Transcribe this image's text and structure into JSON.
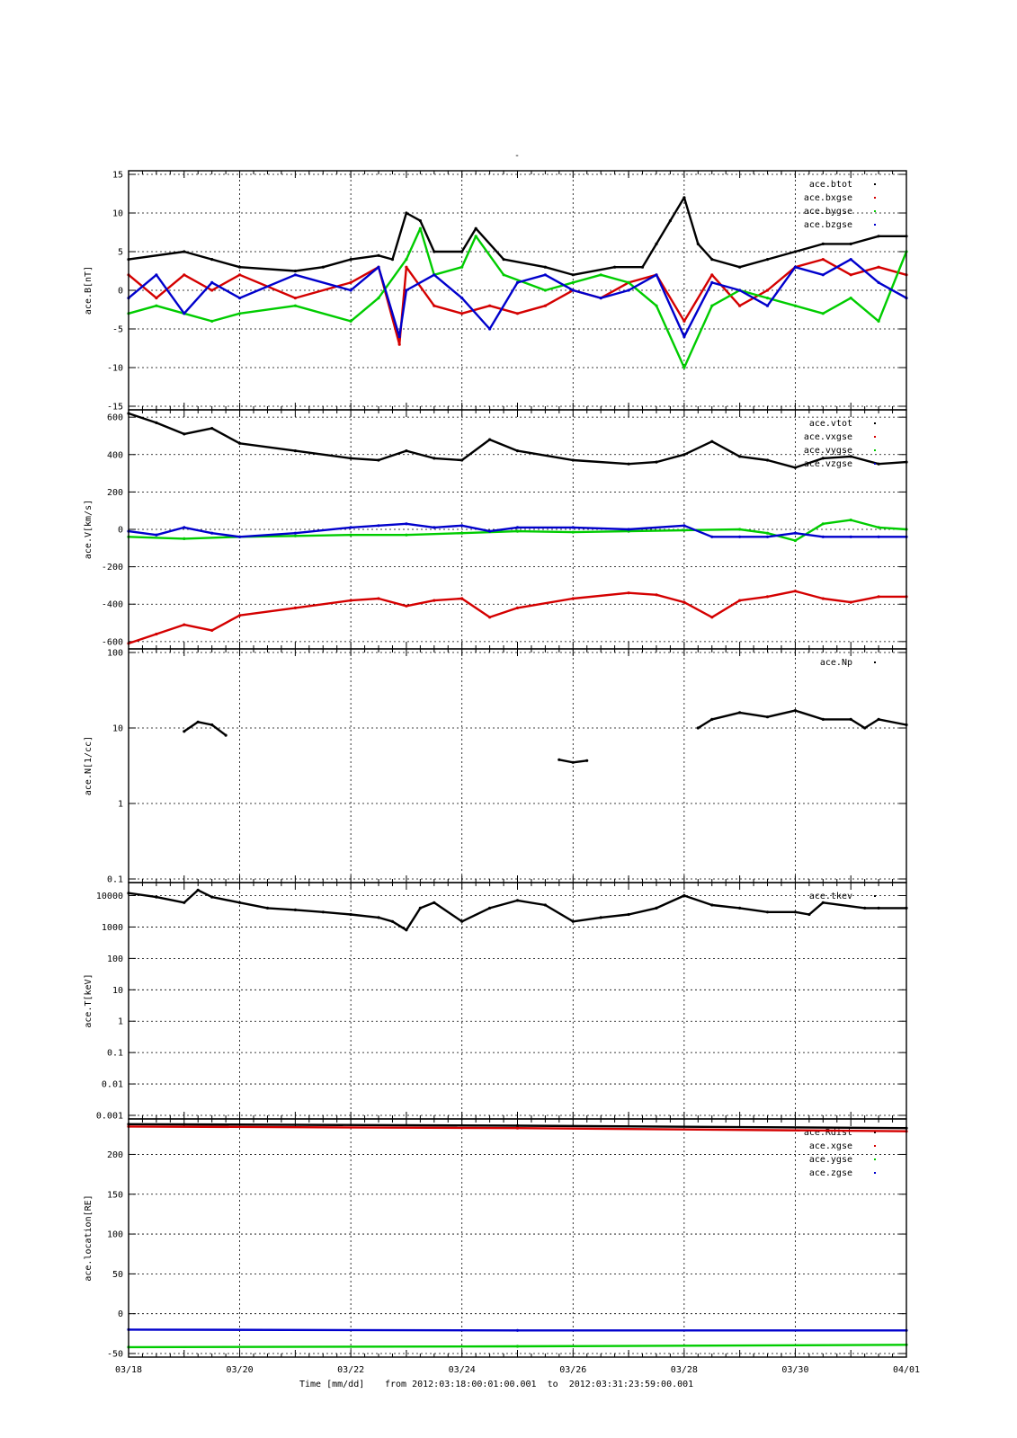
{
  "figure": {
    "title": "-",
    "footer": {
      "xlabel": "Time [mm/dd]",
      "range_text": "from 2012:03:18:00:01:00.001  to  2012:03:31:23:59:00.001"
    },
    "x_ticks": [
      "03/18",
      "03/20",
      "03/22",
      "03/24",
      "03/26",
      "03/28",
      "03/30",
      "04/01"
    ],
    "x_range_days": [
      0,
      14
    ]
  },
  "colors": {
    "black": "#000000",
    "red": "#d40000",
    "green": "#00cc00",
    "blue": "#0000cc"
  },
  "chart_data": [
    {
      "type": "line",
      "ylabel": "ace.B[nT]",
      "ylim": [
        -15,
        15
      ],
      "yscale": "linear",
      "yticks": [
        -15,
        -10,
        -5,
        0,
        5,
        10,
        15
      ],
      "ytick_labels": [
        "-15",
        "-10",
        "-5",
        "0",
        "5",
        "10",
        "15"
      ],
      "grid": true,
      "legend_position": "top-right",
      "series": [
        {
          "name": "ace.btot",
          "color": "black",
          "x": [
            "03/18 00:00",
            "03/19 00:00",
            "03/19 12:00",
            "03/20 00:00",
            "03/21 00:00",
            "03/21 12:00",
            "03/22 00:00",
            "03/22 12:00",
            "03/22 18:00",
            "03/23 00:00",
            "03/23 06:00",
            "03/23 12:00",
            "03/24 00:00",
            "03/24 06:00",
            "03/24 18:00",
            "03/25 12:00",
            "03/26 00:00",
            "03/26 18:00",
            "03/27 06:00",
            "03/27 12:00",
            "03/27 18:00",
            "03/28 00:00",
            "03/28 06:00",
            "03/28 12:00",
            "03/29 00:00",
            "03/29 12:00",
            "03/30 00:00",
            "03/30 12:00",
            "03/31 00:00",
            "03/31 12:00",
            "04/01 00:00"
          ],
          "y": [
            4,
            5,
            4,
            3,
            2.5,
            3,
            4,
            4.5,
            4,
            10,
            9,
            5,
            5,
            8,
            4,
            3,
            2,
            3,
            3,
            6,
            9,
            12,
            6,
            4,
            3,
            4,
            5,
            6,
            6,
            7,
            7
          ]
        },
        {
          "name": "ace.bxgse",
          "color": "red",
          "x": [
            "03/18 00:00",
            "03/18 12:00",
            "03/19 00:00",
            "03/19 12:00",
            "03/20 00:00",
            "03/21 00:00",
            "03/22 00:00",
            "03/22 12:00",
            "03/22 21:00",
            "03/23 00:00",
            "03/23 12:00",
            "03/24 00:00",
            "03/24 12:00",
            "03/25 00:00",
            "03/25 12:00",
            "03/26 00:00",
            "03/26 12:00",
            "03/27 00:00",
            "03/27 12:00",
            "03/28 00:00",
            "03/28 12:00",
            "03/29 00:00",
            "03/29 12:00",
            "03/30 00:00",
            "03/30 12:00",
            "03/31 00:00",
            "03/31 12:00",
            "04/01 00:00"
          ],
          "y": [
            2,
            -1,
            2,
            0,
            2,
            -1,
            1,
            3,
            -7,
            3,
            -2,
            -3,
            -2,
            -3,
            -2,
            0,
            -1,
            1,
            2,
            -4,
            2,
            -2,
            0,
            3,
            4,
            2,
            3,
            2
          ]
        },
        {
          "name": "ace.bygse",
          "color": "green",
          "x": [
            "03/18 00:00",
            "03/18 12:00",
            "03/19 00:00",
            "03/19 12:00",
            "03/20 00:00",
            "03/21 00:00",
            "03/22 00:00",
            "03/22 12:00",
            "03/23 00:00",
            "03/23 06:00",
            "03/23 12:00",
            "03/24 00:00",
            "03/24 06:00",
            "03/24 18:00",
            "03/25 12:00",
            "03/26 00:00",
            "03/26 12:00",
            "03/27 00:00",
            "03/27 12:00",
            "03/28 00:00",
            "03/28 12:00",
            "03/29 00:00",
            "03/29 12:00",
            "03/30 00:00",
            "03/30 12:00",
            "03/31 00:00",
            "03/31 12:00",
            "04/01 00:00"
          ],
          "y": [
            -3,
            -2,
            -3,
            -4,
            -3,
            -2,
            -4,
            -1,
            4,
            8,
            2,
            3,
            7,
            2,
            0,
            1,
            2,
            1,
            -2,
            -10,
            -2,
            0,
            -1,
            -2,
            -3,
            -1,
            -4,
            5
          ]
        },
        {
          "name": "ace.bzgse",
          "color": "blue",
          "x": [
            "03/18 00:00",
            "03/18 12:00",
            "03/19 00:00",
            "03/19 12:00",
            "03/20 00:00",
            "03/21 00:00",
            "03/22 00:00",
            "03/22 12:00",
            "03/22 21:00",
            "03/23 00:00",
            "03/23 12:00",
            "03/24 00:00",
            "03/24 12:00",
            "03/25 00:00",
            "03/25 12:00",
            "03/26 00:00",
            "03/26 12:00",
            "03/27 00:00",
            "03/27 12:00",
            "03/28 00:00",
            "03/28 12:00",
            "03/29 00:00",
            "03/29 12:00",
            "03/30 00:00",
            "03/30 12:00",
            "03/31 00:00",
            "03/31 12:00",
            "04/01 00:00"
          ],
          "y": [
            -1,
            2,
            -3,
            1,
            -1,
            2,
            0,
            3,
            -6,
            0,
            2,
            -1,
            -5,
            1,
            2,
            0,
            -1,
            0,
            2,
            -6,
            1,
            0,
            -2,
            3,
            2,
            4,
            1,
            -1
          ]
        }
      ]
    },
    {
      "type": "line",
      "ylabel": "ace.V[km/s]",
      "ylim": [
        -620,
        620
      ],
      "yscale": "linear",
      "yticks": [
        -600,
        -400,
        -200,
        0,
        200,
        400,
        600
      ],
      "ytick_labels": [
        "-600",
        "-400",
        "-200",
        "0",
        "200",
        "400",
        "600"
      ],
      "grid": true,
      "legend_position": "top-right",
      "series": [
        {
          "name": "ace.vtot",
          "color": "black",
          "x": [
            "03/18 00:00",
            "03/18 12:00",
            "03/19 00:00",
            "03/19 12:00",
            "03/20 00:00",
            "03/21 00:00",
            "03/22 00:00",
            "03/22 12:00",
            "03/23 00:00",
            "03/23 12:00",
            "03/24 00:00",
            "03/24 12:00",
            "03/25 00:00",
            "03/26 00:00",
            "03/27 00:00",
            "03/27 12:00",
            "03/28 00:00",
            "03/28 12:00",
            "03/29 00:00",
            "03/29 12:00",
            "03/30 00:00",
            "03/30 12:00",
            "03/31 00:00",
            "03/31 12:00",
            "04/01 00:00"
          ],
          "y": [
            620,
            570,
            510,
            540,
            460,
            420,
            380,
            370,
            420,
            380,
            370,
            480,
            420,
            370,
            350,
            360,
            400,
            470,
            390,
            370,
            330,
            380,
            390,
            350,
            360
          ]
        },
        {
          "name": "ace.vxgse",
          "color": "red",
          "x": [
            "03/18 00:00",
            "03/18 12:00",
            "03/19 00:00",
            "03/19 12:00",
            "03/20 00:00",
            "03/21 00:00",
            "03/22 00:00",
            "03/22 12:00",
            "03/23 00:00",
            "03/23 12:00",
            "03/24 00:00",
            "03/24 12:00",
            "03/25 00:00",
            "03/26 00:00",
            "03/27 00:00",
            "03/27 12:00",
            "03/28 00:00",
            "03/28 12:00",
            "03/29 00:00",
            "03/29 12:00",
            "03/30 00:00",
            "03/30 12:00",
            "03/31 00:00",
            "03/31 12:00",
            "04/01 00:00"
          ],
          "y": [
            -610,
            -560,
            -510,
            -540,
            -460,
            -420,
            -380,
            -370,
            -410,
            -380,
            -370,
            -470,
            -420,
            -370,
            -340,
            -350,
            -390,
            -470,
            -380,
            -360,
            -330,
            -370,
            -390,
            -360,
            -360
          ]
        },
        {
          "name": "ace.vygse",
          "color": "green",
          "x": [
            "03/18 00:00",
            "03/19 00:00",
            "03/20 00:00",
            "03/21 00:00",
            "03/22 00:00",
            "03/23 00:00",
            "03/24 00:00",
            "03/25 00:00",
            "03/26 00:00",
            "03/27 00:00",
            "03/28 00:00",
            "03/29 00:00",
            "03/29 12:00",
            "03/30 00:00",
            "03/30 12:00",
            "03/31 00:00",
            "03/31 12:00",
            "04/01 00:00"
          ],
          "y": [
            -40,
            -50,
            -40,
            -35,
            -30,
            -30,
            -20,
            -10,
            -15,
            -10,
            -5,
            0,
            -20,
            -60,
            30,
            50,
            10,
            0
          ]
        },
        {
          "name": "ace.vzgse",
          "color": "blue",
          "x": [
            "03/18 00:00",
            "03/18 12:00",
            "03/19 00:00",
            "03/19 12:00",
            "03/20 00:00",
            "03/21 00:00",
            "03/22 00:00",
            "03/22 12:00",
            "03/23 00:00",
            "03/23 12:00",
            "03/24 00:00",
            "03/24 12:00",
            "03/25 00:00",
            "03/26 00:00",
            "03/27 00:00",
            "03/28 00:00",
            "03/28 12:00",
            "03/29 00:00",
            "03/29 12:00",
            "03/30 00:00",
            "03/30 12:00",
            "03/31 00:00",
            "03/31 12:00",
            "04/01 00:00"
          ],
          "y": [
            -10,
            -30,
            10,
            -20,
            -40,
            -20,
            10,
            20,
            30,
            10,
            20,
            -10,
            10,
            10,
            0,
            20,
            -40,
            -40,
            -40,
            -20,
            -40,
            -40,
            -40,
            -40
          ]
        }
      ]
    },
    {
      "type": "scatter",
      "ylabel": "ace.N[1/cc]",
      "ylim": [
        0.1,
        100
      ],
      "yscale": "log",
      "yticks": [
        0.1,
        1,
        10,
        100
      ],
      "ytick_labels": [
        "0.1",
        "1",
        "10",
        "100"
      ],
      "grid": true,
      "legend_position": "top-right",
      "series": [
        {
          "name": "ace.Np",
          "color": "black",
          "segments": [
            {
              "x": [
                "03/19 00:00",
                "03/19 06:00",
                "03/19 12:00",
                "03/19 18:00"
              ],
              "y": [
                9,
                12,
                11,
                8
              ]
            },
            {
              "x": [
                "03/25 18:00",
                "03/26 00:00",
                "03/26 06:00"
              ],
              "y": [
                3.8,
                3.5,
                3.7
              ]
            },
            {
              "x": [
                "03/28 06:00",
                "03/28 12:00",
                "03/29 00:00",
                "03/29 12:00",
                "03/30 00:00",
                "03/30 12:00",
                "03/31 00:00",
                "03/31 06:00",
                "03/31 12:00",
                "04/01 00:00"
              ],
              "y": [
                10,
                13,
                16,
                14,
                17,
                13,
                13,
                10,
                13,
                11
              ]
            }
          ]
        }
      ]
    },
    {
      "type": "scatter",
      "ylabel": "ace.T[keV]",
      "ylim": [
        0.001,
        20000
      ],
      "yscale": "log",
      "yticks": [
        0.001,
        0.01,
        0.1,
        1,
        10,
        100,
        1000,
        10000
      ],
      "ytick_labels": [
        "0.001",
        "0.01",
        "0.1",
        "1",
        "10",
        "100",
        "1000",
        "10000"
      ],
      "grid": true,
      "legend_position": "top-right",
      "series": [
        {
          "name": "ace.tkev",
          "color": "black",
          "segments": [
            {
              "x": [
                "03/18 00:00",
                "03/18 12:00",
                "03/19 00:00",
                "03/19 06:00",
                "03/19 12:00",
                "03/20 00:00",
                "03/20 12:00",
                "03/21 00:00",
                "03/21 12:00",
                "03/22 00:00",
                "03/22 12:00",
                "03/22 18:00",
                "03/23 00:00",
                "03/23 06:00",
                "03/23 12:00",
                "03/24 00:00",
                "03/24 12:00",
                "03/25 00:00",
                "03/25 12:00",
                "03/26 00:00",
                "03/26 12:00",
                "03/27 00:00",
                "03/27 12:00",
                "03/28 00:00",
                "03/28 12:00",
                "03/29 00:00",
                "03/29 12:00",
                "03/30 00:00",
                "03/30 06:00",
                "03/30 12:00",
                "03/31 06:00",
                "03/31 12:00",
                "04/01 00:00"
              ],
              "y": [
                12000,
                9000,
                6000,
                15000,
                9000,
                6000,
                4000,
                3500,
                3000,
                2500,
                2000,
                1500,
                800,
                4000,
                6000,
                1500,
                4000,
                7000,
                5000,
                1500,
                2000,
                2500,
                4000,
                10000,
                5000,
                4000,
                3000,
                3000,
                2500,
                6000,
                4000,
                4000,
                4000
              ]
            }
          ]
        }
      ]
    },
    {
      "type": "line",
      "ylabel": "ace.location[RE]",
      "ylim": [
        -50,
        240
      ],
      "yscale": "linear",
      "yticks": [
        -50,
        0,
        50,
        100,
        150,
        200
      ],
      "ytick_labels": [
        "-50",
        "0",
        "50",
        "100",
        "150",
        "200"
      ],
      "grid": true,
      "legend_position": "top-right",
      "series": [
        {
          "name": "ace.Rdist",
          "color": "black",
          "x": [
            "03/18 00:00",
            "03/25 00:00",
            "04/01 00:00"
          ],
          "y": [
            238,
            236,
            233
          ]
        },
        {
          "name": "ace.xgse",
          "color": "red",
          "x": [
            "03/18 00:00",
            "03/25 00:00",
            "04/01 00:00"
          ],
          "y": [
            235,
            233,
            229
          ]
        },
        {
          "name": "ace.ygse",
          "color": "green",
          "x": [
            "03/18 00:00",
            "03/25 00:00",
            "04/01 00:00"
          ],
          "y": [
            -42,
            -41,
            -39
          ]
        },
        {
          "name": "ace.zgse",
          "color": "blue",
          "x": [
            "03/18 00:00",
            "03/25 00:00",
            "04/01 00:00"
          ],
          "y": [
            -20,
            -21,
            -21
          ]
        }
      ]
    }
  ]
}
